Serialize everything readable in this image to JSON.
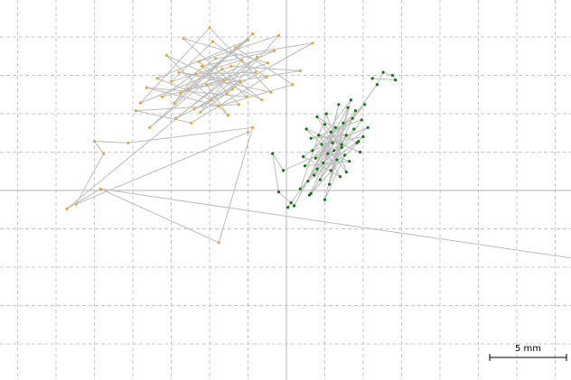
{
  "chart_data": {
    "type": "scatter",
    "title": "",
    "xlabel": "",
    "ylabel": "",
    "units": "mm",
    "xlim": [
      -18.5,
      18.5
    ],
    "ylim": [
      -12.5,
      12.5
    ],
    "grid": true,
    "grid_spacing_mm": 2.5,
    "axes_cross_at": [
      0,
      0
    ],
    "scale_bar": {
      "length_mm": 5,
      "label": "5 mm"
    },
    "colors": {
      "orange_points": "#e8a832",
      "green_points": "#0a7a0a",
      "connecting_line": "#bdbdbd",
      "grid": "#c8c8c8"
    },
    "series": [
      {
        "color": "#e8a832",
        "style": "points connected by lines in acquisition order",
        "points": [
          [
            -3.5,
            6.6
          ],
          [
            -5.6,
            5.1
          ],
          [
            -2.9,
            8.5
          ],
          [
            -7.5,
            7.1
          ],
          [
            -4.8,
            9.7
          ],
          [
            -1.3,
            7.4
          ],
          [
            -6.2,
            4.4
          ],
          [
            -9.8,
            5.2
          ],
          [
            -3.1,
            5.6
          ],
          [
            -5.5,
            8.1
          ],
          [
            -0.8,
            9.1
          ],
          [
            -6.9,
            6.3
          ],
          [
            -2.2,
            10.2
          ],
          [
            -8.9,
            4.1
          ],
          [
            -4.2,
            7.9
          ],
          [
            -1.6,
            5.9
          ],
          [
            -7.8,
            8.8
          ],
          [
            -3.8,
            4.9
          ],
          [
            -5.2,
            6.9
          ],
          [
            -1.2,
            8.3
          ],
          [
            -6.7,
            9.9
          ],
          [
            -2.6,
            6.1
          ],
          [
            -9.1,
            6.7
          ],
          [
            -4.4,
            5.5
          ],
          [
            0.4,
            6.9
          ],
          [
            -3.3,
            9.3
          ],
          [
            -7.3,
            5.7
          ],
          [
            -5.9,
            7.6
          ],
          [
            -2.0,
            7.7
          ],
          [
            -8.1,
            6.1
          ],
          [
            -4.6,
            8.6
          ],
          [
            1.7,
            9.6
          ],
          [
            -6.0,
            5.3
          ],
          [
            -3.0,
            7.1
          ],
          [
            -7.0,
            7.7
          ],
          [
            -1.0,
            6.4
          ],
          [
            -5.0,
            10.6
          ],
          [
            -9.5,
            5.7
          ],
          [
            -3.6,
            8.1
          ],
          [
            0.9,
            7.8
          ],
          [
            -6.4,
            6.6
          ],
          [
            -2.5,
            9.8
          ],
          [
            -8.4,
            7.3
          ],
          [
            -4.9,
            5.9
          ],
          [
            -1.9,
            8.7
          ],
          [
            -7.2,
            4.7
          ],
          [
            -3.9,
            6.3
          ],
          [
            -0.5,
            10.1
          ],
          [
            -5.7,
            8.4
          ],
          [
            -4.1,
            7.2
          ],
          [
            -14.3,
            -1.2
          ],
          [
            -12.1,
            0.1
          ],
          [
            -4.4,
            -3.4
          ],
          [
            -2.2,
            4.1
          ],
          [
            -10.3,
            3.1
          ],
          [
            -12.5,
            3.2
          ],
          [
            -11.9,
            2.4
          ],
          [
            -13.7,
            -0.9
          ],
          [
            -2.5,
            3.8
          ]
        ]
      },
      {
        "color": "#0a7a0a",
        "style": "points connected by lines in acquisition order",
        "points": [
          [
            2.5,
            4.3
          ],
          [
            3.6,
            2.8
          ],
          [
            1.9,
            2.1
          ],
          [
            4.5,
            5.2
          ],
          [
            2.9,
            1.3
          ],
          [
            3.9,
            3.6
          ],
          [
            1.6,
            3.4
          ],
          [
            4.9,
            4.6
          ],
          [
            2.2,
            0.7
          ],
          [
            3.4,
            5.6
          ],
          [
            2.7,
            2.4
          ],
          [
            4.1,
            1.9
          ],
          [
            1.2,
            1.6
          ],
          [
            5.1,
            5.6
          ],
          [
            3.0,
            3.1
          ],
          [
            2.0,
            4.8
          ],
          [
            4.6,
            3.1
          ],
          [
            1.5,
            -0.3
          ],
          [
            3.7,
            4.4
          ],
          [
            2.4,
            1.8
          ],
          [
            5.3,
            4.1
          ],
          [
            1.7,
            2.6
          ],
          [
            4.2,
            5.9
          ],
          [
            2.8,
            0.4
          ],
          [
            3.3,
            2.0
          ],
          [
            1.3,
            4.0
          ],
          [
            4.8,
            2.5
          ],
          [
            2.1,
            3.6
          ],
          [
            3.9,
            1.2
          ],
          [
            2.6,
            5.0
          ],
          [
            0.9,
            0.1
          ],
          [
            4.4,
            4.0
          ],
          [
            3.1,
            2.6
          ],
          [
            1.8,
            1.0
          ],
          [
            5.0,
            3.5
          ],
          [
            2.3,
            3.0
          ],
          [
            3.5,
            0.9
          ],
          [
            1.1,
            2.2
          ],
          [
            4.3,
            4.7
          ],
          [
            2.9,
            3.8
          ],
          [
            1.4,
            0.6
          ],
          [
            3.8,
            2.3
          ],
          [
            2.5,
            -0.6
          ],
          [
            4.0,
            5.4
          ],
          [
            0.5,
            -1.0
          ],
          [
            3.2,
            4.1
          ],
          [
            2.0,
            1.4
          ],
          [
            4.7,
            3.2
          ],
          [
            1.6,
            -0.2
          ],
          [
            3.6,
            3.0
          ],
          [
            -0.2,
            1.3
          ],
          [
            -0.9,
            2.4
          ],
          [
            -0.5,
            -0.1
          ],
          [
            0.3,
            -0.8
          ],
          [
            0.1,
            -1.1
          ],
          [
            5.9,
            6.9
          ],
          [
            6.3,
            7.7
          ],
          [
            6.9,
            7.5
          ],
          [
            7.1,
            7.2
          ],
          [
            5.6,
            7.3
          ]
        ]
      }
    ],
    "connector_traces": [
      {
        "color": "#bdbdbd",
        "points": [
          [
            -12.1,
            0.1
          ],
          [
            18.5,
            -4.4
          ]
        ]
      }
    ]
  }
}
